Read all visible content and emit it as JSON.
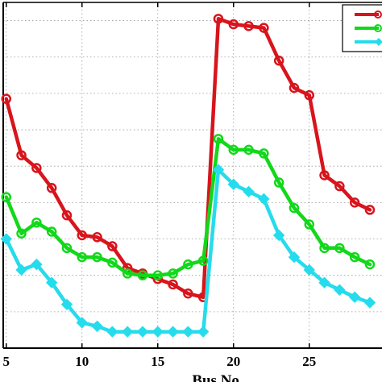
{
  "chart_data": {
    "type": "line",
    "title": "",
    "xlabel": "Bus No.",
    "ylabel": "",
    "xlim": [
      4.8,
      29.8
    ],
    "ylim": [
      0,
      19
    ],
    "x_ticks": [
      5,
      10,
      15,
      20,
      25
    ],
    "x_tick_labels": [
      "5",
      "10",
      "15",
      "20",
      "25"
    ],
    "grid": true,
    "legend_position": "top-right",
    "x": [
      5,
      6,
      7,
      8,
      9,
      10,
      11,
      12,
      13,
      14,
      15,
      16,
      17,
      18,
      19,
      20,
      21,
      22,
      23,
      24,
      25,
      26,
      27,
      28,
      29
    ],
    "series": [
      {
        "color": "#d8141c",
        "marker": "circle",
        "values": [
          13.7,
          10.6,
          9.9,
          8.8,
          7.3,
          6.2,
          6.1,
          5.6,
          4.4,
          4.1,
          3.8,
          3.5,
          3.0,
          2.8,
          18.1,
          17.8,
          17.7,
          17.6,
          15.8,
          14.3,
          13.9,
          9.5,
          8.9,
          8.0,
          7.6
        ]
      },
      {
        "color": "#12d81a",
        "marker": "circle",
        "values": [
          8.3,
          6.3,
          6.9,
          6.4,
          5.5,
          5.0,
          5.0,
          4.7,
          4.1,
          4.0,
          4.0,
          4.1,
          4.6,
          4.8,
          11.5,
          10.9,
          10.9,
          10.7,
          9.1,
          7.7,
          6.8,
          5.5,
          5.5,
          5.0,
          4.6
        ]
      },
      {
        "color": "#25dcec",
        "marker": "diamond",
        "values": [
          6.0,
          4.3,
          4.6,
          3.6,
          2.4,
          1.4,
          1.2,
          0.9,
          0.9,
          0.9,
          0.9,
          0.9,
          0.9,
          0.9,
          9.8,
          9.0,
          8.6,
          8.2,
          6.2,
          5.0,
          4.3,
          3.6,
          3.2,
          2.8,
          2.5
        ]
      }
    ]
  }
}
